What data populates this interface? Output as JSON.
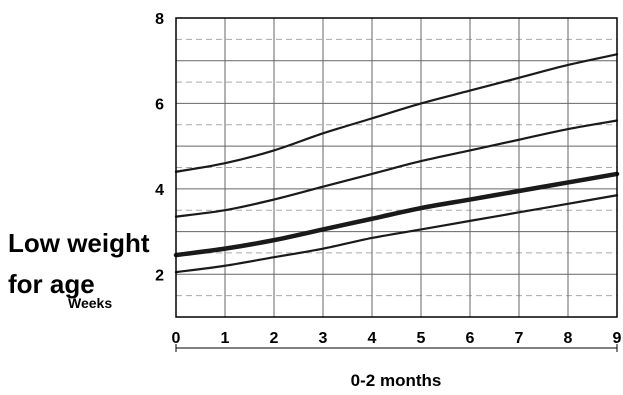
{
  "chart_data": {
    "type": "line",
    "title": "",
    "annotation_lines": [
      "Low weight",
      "for age"
    ],
    "xlabel": "0-2 months",
    "x_unit_label": "Weeks",
    "xlim": [
      0,
      9
    ],
    "ylim": [
      1,
      8
    ],
    "x_ticks": [
      "0",
      "1",
      "2",
      "3",
      "4",
      "5",
      "6",
      "7",
      "8",
      "9"
    ],
    "y_ticks": [
      "2",
      "4",
      "6",
      "8"
    ],
    "grid": true,
    "minor_grid_dashed": true,
    "x": [
      0,
      1,
      2,
      3,
      4,
      5,
      6,
      7,
      8,
      9
    ],
    "series": [
      {
        "values": [
          4.4,
          4.6,
          4.9,
          5.3,
          5.65,
          6.0,
          6.3,
          6.6,
          6.9,
          7.15
        ],
        "emphasis": false
      },
      {
        "values": [
          3.35,
          3.5,
          3.75,
          4.05,
          4.35,
          4.65,
          4.9,
          5.15,
          5.4,
          5.6
        ],
        "emphasis": false
      },
      {
        "values": [
          2.45,
          2.6,
          2.8,
          3.05,
          3.3,
          3.55,
          3.75,
          3.95,
          4.15,
          4.35
        ],
        "emphasis": true
      },
      {
        "values": [
          2.05,
          2.2,
          2.4,
          2.6,
          2.85,
          3.05,
          3.25,
          3.45,
          3.65,
          3.85
        ],
        "emphasis": false
      }
    ],
    "colors": {
      "line": "#1a1a1a",
      "grid": "#666666",
      "minor_grid": "#aaaaaa"
    }
  }
}
